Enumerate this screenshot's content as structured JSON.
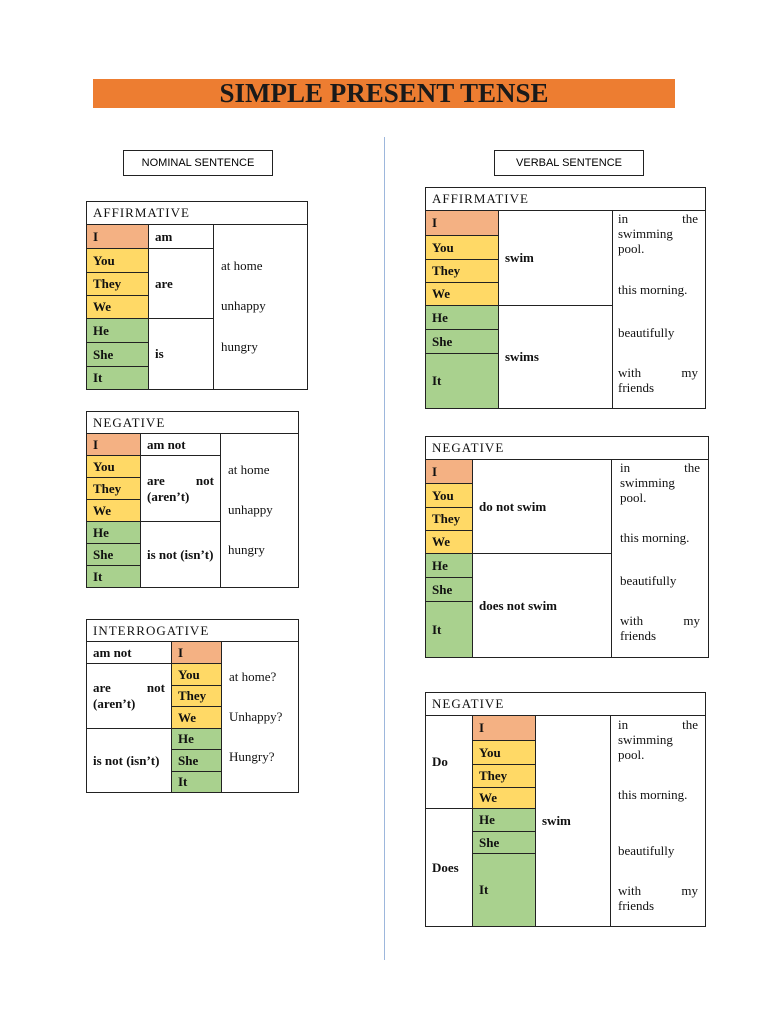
{
  "title": "SIMPLE PRESENT TENSE",
  "nominal": {
    "heading": "NOMINAL SENTENCE",
    "affirmative": {
      "title": "AFFIRMATIVE",
      "subjects": [
        "I",
        "You",
        "They",
        "We",
        "He",
        "She",
        "It"
      ],
      "verbs": [
        "am",
        "are",
        "is"
      ],
      "complements": [
        "at home",
        "unhappy",
        "hungry"
      ]
    },
    "negative": {
      "title": "NEGATIVE",
      "subjects": [
        "I",
        "You",
        "They",
        "We",
        "He",
        "She",
        "It"
      ],
      "verbs": [
        "am not",
        "are not (aren’t)",
        "is not (isn’t)"
      ],
      "complements": [
        "at home",
        "unhappy",
        "hungry"
      ]
    },
    "interrogative": {
      "title": "INTERROGATIVE",
      "verbs": [
        "am not",
        "are not (aren’t)",
        "is not (isn’t)"
      ],
      "subjects": [
        "I",
        "You",
        "They",
        "We",
        "He",
        "She",
        "It"
      ],
      "complements": [
        "at home?",
        "Unhappy?",
        "Hungry?"
      ]
    }
  },
  "verbal": {
    "heading": "VERBAL SENTENCE",
    "affirmative": {
      "title": "AFFIRMATIVE",
      "subjects": [
        "I",
        "You",
        "They",
        "We",
        "He",
        "She",
        "It"
      ],
      "verbs": [
        "swim",
        "swims"
      ],
      "complements": [
        "in the swimming pool.",
        "this morning.",
        "beautifully",
        "with my friends"
      ]
    },
    "negative": {
      "title": "NEGATIVE",
      "subjects": [
        "I",
        "You",
        "They",
        "We",
        "He",
        "She",
        "It"
      ],
      "verbs": [
        "do not swim",
        "does not swim"
      ],
      "complements": [
        "in the swimming pool.",
        "this morning.",
        "beautifully",
        "with my friends"
      ]
    },
    "interrogative": {
      "title": "NEGATIVE",
      "auxiliaries": [
        "Do",
        "Does"
      ],
      "subjects": [
        "I",
        "You",
        "They",
        "We",
        "He",
        "She",
        "It"
      ],
      "verbs": [
        "swim"
      ],
      "complements": [
        "in the swimming pool.",
        "this morning.",
        "beautifully",
        "with my friends"
      ]
    }
  }
}
